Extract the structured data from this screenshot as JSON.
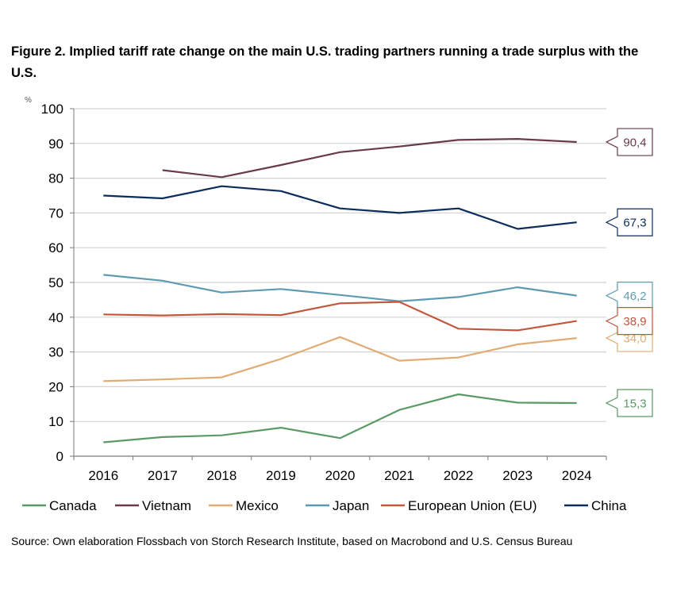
{
  "title": "Figure 2. Implied tariff rate change on the main U.S. trading partners running a trade surplus with the U.S.",
  "source": "Source: Own elaboration Flossbach von Storch Research Institute, based on Macrobond and U.S. Census Bureau",
  "chart_data": {
    "type": "line",
    "title": "Figure 2. Implied tariff rate change on the main U.S. trading partners running a trade surplus with the U.S.",
    "xlabel": "",
    "ylabel": "",
    "y_unit": "%",
    "x": [
      "2016",
      "2017",
      "2018",
      "2019",
      "2020",
      "2021",
      "2022",
      "2023",
      "2024"
    ],
    "ylim": [
      0,
      100
    ],
    "yticks": [
      "0",
      "10",
      "20",
      "30",
      "40",
      "50",
      "60",
      "70",
      "80",
      "90",
      "100"
    ],
    "grid": "horizontal",
    "legend_position": "bottom",
    "series": [
      {
        "name": "Canada",
        "color": "#5a9a64",
        "values": [
          4.0,
          5.5,
          6.0,
          8.2,
          5.2,
          13.3,
          17.8,
          15.4,
          15.3
        ],
        "end_label": "15,3"
      },
      {
        "name": "Vietnam",
        "color": "#6b3a4a",
        "values": [
          null,
          82.3,
          80.3,
          83.8,
          87.5,
          89.1,
          91.0,
          91.3,
          90.4
        ],
        "end_label": "90,4"
      },
      {
        "name": "Mexico",
        "color": "#e0ac74",
        "values": [
          21.6,
          22.1,
          22.7,
          28.0,
          34.3,
          27.5,
          28.4,
          32.2,
          34.0
        ],
        "end_label": "34,0"
      },
      {
        "name": "Japan",
        "color": "#5e9bb0",
        "values": [
          52.2,
          50.5,
          47.1,
          48.1,
          46.4,
          44.6,
          45.8,
          48.6,
          46.2
        ],
        "end_label": "46,2"
      },
      {
        "name": "European Union (EU)",
        "color": "#c1583d",
        "values": [
          40.8,
          40.5,
          40.9,
          40.6,
          44.0,
          44.4,
          36.7,
          36.2,
          38.9
        ],
        "end_label": "38,9"
      },
      {
        "name": "China",
        "color": "#0d2c5c",
        "values": [
          75.0,
          74.2,
          77.7,
          76.3,
          71.3,
          70.0,
          71.3,
          65.4,
          67.3
        ],
        "end_label": "67,3"
      }
    ]
  }
}
